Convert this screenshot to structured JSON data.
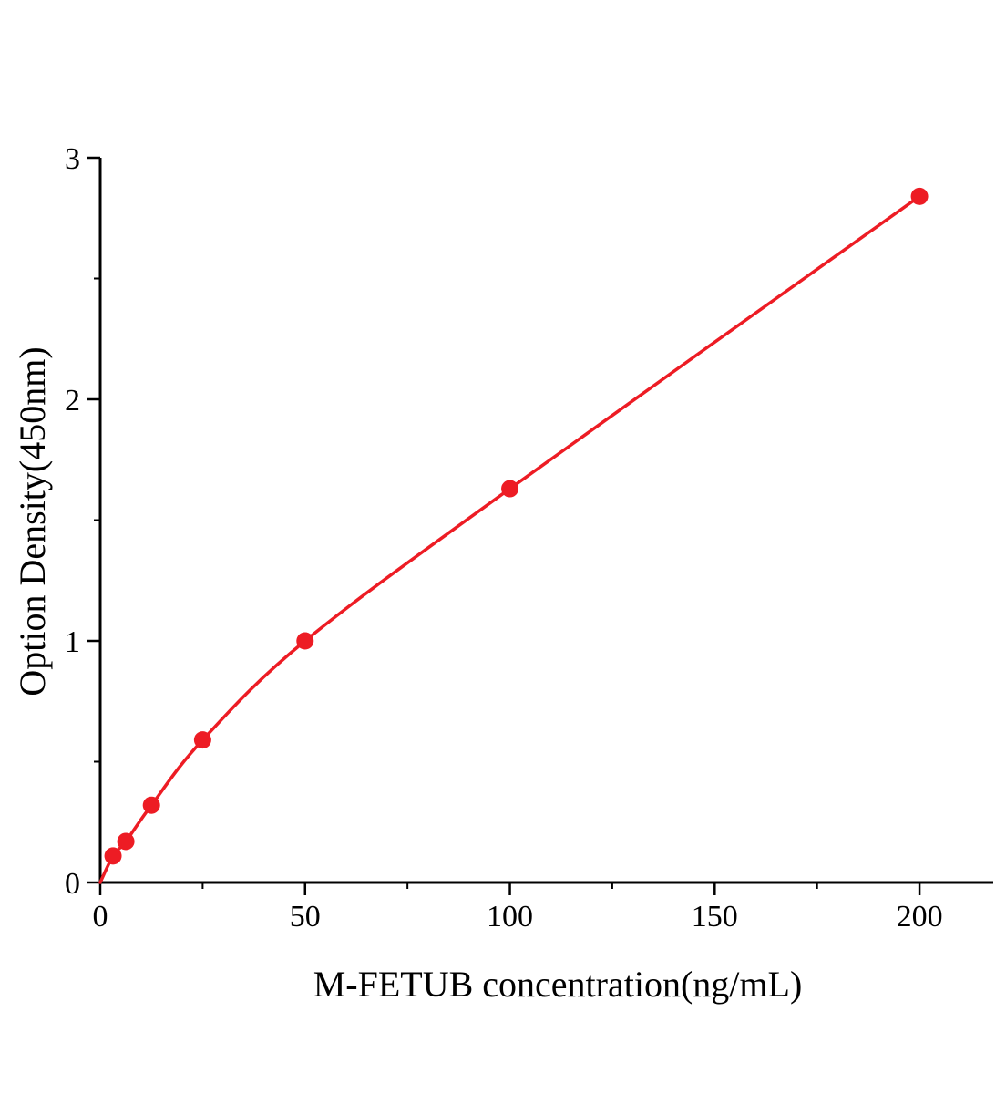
{
  "chart_data": {
    "type": "scatter",
    "title": "",
    "xlabel": "M-FETUB concentration(ng/mL)",
    "ylabel": "Option Density(450nm)",
    "x": [
      3.125,
      6.25,
      12.5,
      25,
      50,
      100,
      200
    ],
    "y": [
      0.11,
      0.17,
      0.32,
      0.59,
      1.0,
      1.63,
      2.84
    ],
    "curve_start_x": 0,
    "curve_start_y": 0,
    "xlim": [
      0,
      218
    ],
    "ylim": [
      0,
      3
    ],
    "x_major_ticks": [
      0,
      50,
      100,
      150,
      200
    ],
    "x_tick_labels": [
      "0",
      "50",
      "100",
      "150",
      "200"
    ],
    "x_minor_ticks": [
      25,
      75,
      125,
      175
    ],
    "y_major_ticks": [
      0,
      1,
      2,
      3
    ],
    "y_tick_labels": [
      "0",
      "1",
      "2",
      "3"
    ],
    "y_minor_ticks": [
      0.5,
      1.5,
      2.5
    ],
    "line_color": "#ed1c24",
    "marker_color": "#ed1c24",
    "axis_color": "#000000",
    "grid": "off",
    "legend": "none"
  }
}
